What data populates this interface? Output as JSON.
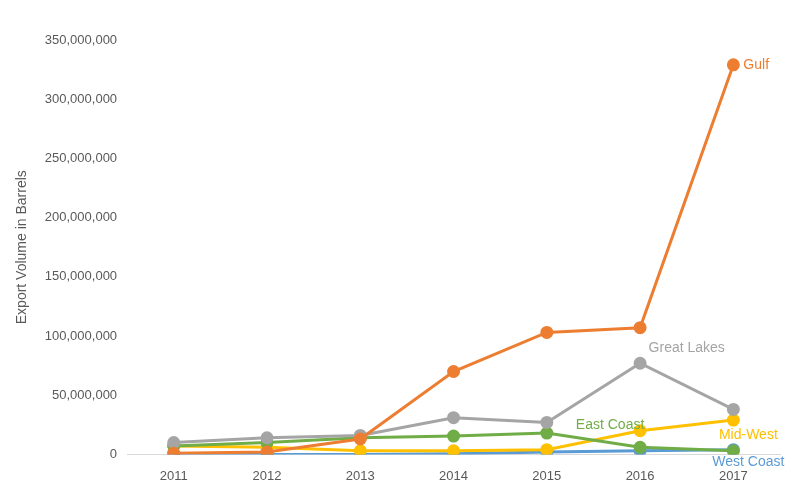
{
  "chart_data": {
    "type": "line",
    "y_label": "Export Volume in Barrels",
    "categories": [
      "2011",
      "2012",
      "2013",
      "2014",
      "2015",
      "2016",
      "2017"
    ],
    "series": [
      {
        "name": "Gulf",
        "color": "#ED7D31",
        "marker": "circle",
        "line_style": "solid",
        "values": [
          1000000,
          2000000,
          13000000,
          70000000,
          103000000,
          107000000,
          329000000
        ]
      },
      {
        "name": "Great Lakes",
        "color": "#A5A5A5",
        "marker": "circle",
        "line_style": "solid",
        "values": [
          10000000,
          14000000,
          16000000,
          31000000,
          27000000,
          77000000,
          38000000
        ]
      },
      {
        "name": "East Coast",
        "color": "#70AD47",
        "marker": "circle",
        "line_style": "solid",
        "values": [
          7000000,
          10000000,
          14000000,
          15500000,
          18000000,
          6000000,
          3000000
        ]
      },
      {
        "name": "Mid-West",
        "color": "#FFC000",
        "marker": "circle",
        "line_style": "solid",
        "values": [
          7000000,
          6000000,
          3000000,
          3000000,
          4000000,
          20000000,
          29000000
        ]
      },
      {
        "name": "West Coast",
        "color": "#5B9BD5",
        "marker": "circle",
        "line_style": "solid",
        "values": [
          0,
          0,
          0,
          500000,
          2000000,
          3000000,
          4000000
        ]
      }
    ],
    "ylim": [
      0,
      350000000
    ],
    "yticks": [
      0,
      {
        "value": 50000000,
        "label": "50,000,000"
      },
      {
        "value": 100000000,
        "label": "100,000,000"
      },
      {
        "value": 150000000,
        "label": "150,000,000"
      },
      {
        "value": 200000000,
        "label": "200,000,000"
      },
      {
        "value": 250000000,
        "label": "250,000,000"
      },
      {
        "value": 300000000,
        "label": "300,000,000"
      },
      {
        "value": 350000000,
        "label": "350,000,000"
      }
    ],
    "grid": false
  }
}
